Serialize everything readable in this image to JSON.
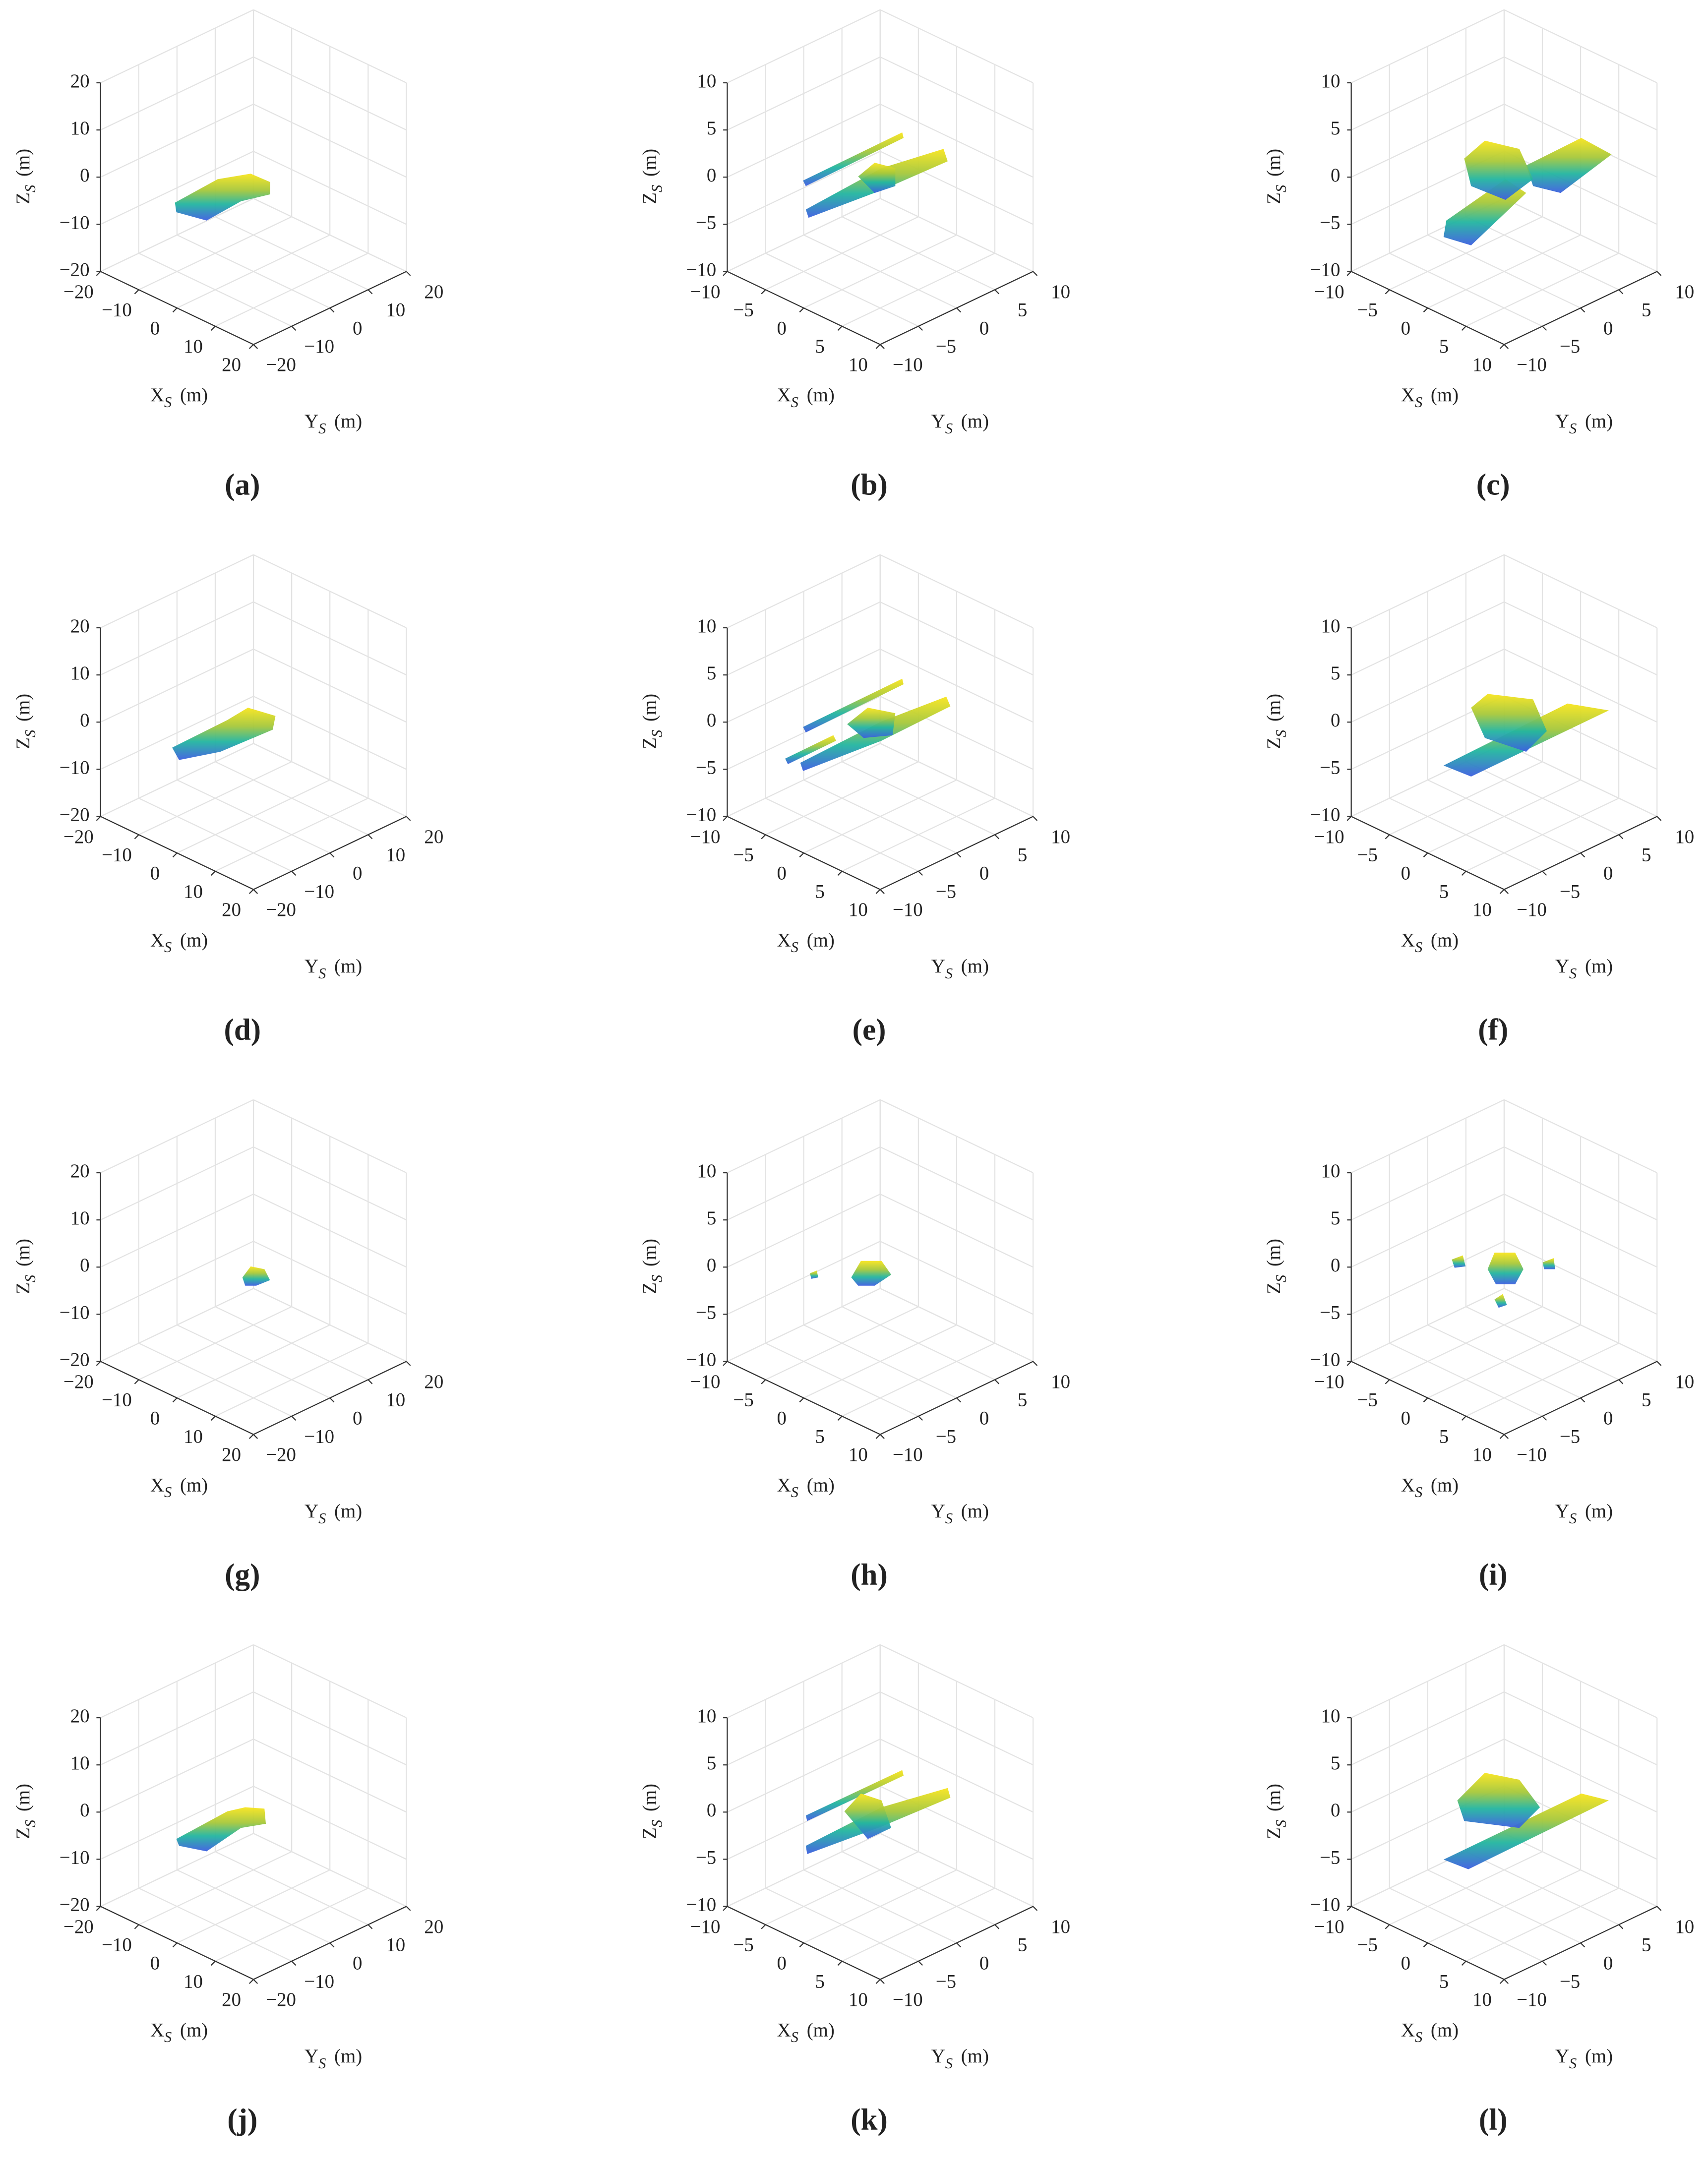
{
  "chart_data": [
    {
      "type": "scatter3d",
      "label": "(a)",
      "xlabel": [
        "X",
        "S",
        "(m)"
      ],
      "ylabel": [
        "Y",
        "S",
        "(m)"
      ],
      "zlabel": [
        "Z",
        "S",
        "(m)"
      ],
      "xlim": [
        -20,
        20
      ],
      "ylim": [
        -20,
        20
      ],
      "zlim": [
        -20,
        20
      ],
      "xticks": [
        {
          "value": -20,
          "label": "−20"
        },
        {
          "value": -10,
          "label": "−10"
        },
        0,
        10,
        20
      ],
      "yticks": [
        {
          "value": -20,
          "label": "−20"
        },
        {
          "value": -10,
          "label": "−10"
        },
        0,
        10,
        20
      ],
      "zticks": [
        {
          "value": -20,
          "label": "−20"
        },
        {
          "value": -10,
          "label": "−10"
        },
        0,
        10,
        20
      ],
      "grid": true
    },
    {
      "type": "scatter3d",
      "label": "(b)",
      "xlabel": [
        "X",
        "S",
        "(m)"
      ],
      "ylabel": [
        "Y",
        "S",
        "(m)"
      ],
      "zlabel": [
        "Z",
        "S",
        "(m)"
      ],
      "xlim": [
        -10,
        10
      ],
      "ylim": [
        -10,
        10
      ],
      "zlim": [
        -10,
        10
      ],
      "xticks": [
        {
          "value": -10,
          "label": "−10"
        },
        {
          "value": -5,
          "label": "−5"
        },
        0,
        5,
        10
      ],
      "yticks": [
        {
          "value": -10,
          "label": "−10"
        },
        {
          "value": -5,
          "label": "−5"
        },
        0,
        5,
        10
      ],
      "zticks": [
        {
          "value": -10,
          "label": "−10"
        },
        {
          "value": -5,
          "label": "−5"
        },
        0,
        5,
        10
      ],
      "grid": true
    },
    {
      "type": "scatter3d",
      "label": "(c)",
      "xlabel": [
        "X",
        "S",
        "(m)"
      ],
      "ylabel": [
        "Y",
        "S",
        "(m)"
      ],
      "zlabel": [
        "Z",
        "S",
        "(m)"
      ],
      "xlim": [
        -10,
        10
      ],
      "ylim": [
        -10,
        10
      ],
      "zlim": [
        -10,
        10
      ],
      "xticks": [
        {
          "value": -10,
          "label": "−10"
        },
        {
          "value": -5,
          "label": "−5"
        },
        0,
        5,
        10
      ],
      "yticks": [
        {
          "value": -10,
          "label": "−10"
        },
        {
          "value": -5,
          "label": "−5"
        },
        0,
        5,
        10
      ],
      "zticks": [
        {
          "value": -10,
          "label": "−10"
        },
        {
          "value": -5,
          "label": "−5"
        },
        0,
        5,
        10
      ],
      "grid": true
    },
    {
      "type": "scatter3d",
      "label": "(d)",
      "xlabel": [
        "X",
        "S",
        "(m)"
      ],
      "ylabel": [
        "Y",
        "S",
        "(m)"
      ],
      "zlabel": [
        "Z",
        "S",
        "(m)"
      ],
      "xlim": [
        -20,
        20
      ],
      "ylim": [
        -20,
        20
      ],
      "zlim": [
        -20,
        20
      ],
      "xticks": [
        {
          "value": -20,
          "label": "−20"
        },
        {
          "value": -10,
          "label": "−10"
        },
        0,
        10,
        20
      ],
      "yticks": [
        {
          "value": -20,
          "label": "−20"
        },
        {
          "value": -10,
          "label": "−10"
        },
        0,
        10,
        20
      ],
      "zticks": [
        {
          "value": -20,
          "label": "−20"
        },
        {
          "value": -10,
          "label": "−10"
        },
        0,
        10,
        20
      ],
      "grid": true
    },
    {
      "type": "scatter3d",
      "label": "(e)",
      "xlabel": [
        "X",
        "S",
        "(m)"
      ],
      "ylabel": [
        "Y",
        "S",
        "(m)"
      ],
      "zlabel": [
        "Z",
        "S",
        "(m)"
      ],
      "xlim": [
        -10,
        10
      ],
      "ylim": [
        -10,
        10
      ],
      "zlim": [
        -10,
        10
      ],
      "xticks": [
        {
          "value": -10,
          "label": "−10"
        },
        {
          "value": -5,
          "label": "−5"
        },
        0,
        5,
        10
      ],
      "yticks": [
        {
          "value": -10,
          "label": "−10"
        },
        {
          "value": -5,
          "label": "−5"
        },
        0,
        5,
        10
      ],
      "zticks": [
        {
          "value": -10,
          "label": "−10"
        },
        {
          "value": -5,
          "label": "−5"
        },
        0,
        5,
        10
      ],
      "grid": true
    },
    {
      "type": "scatter3d",
      "label": "(f)",
      "xlabel": [
        "X",
        "S",
        "(m)"
      ],
      "ylabel": [
        "Y",
        "S",
        "(m)"
      ],
      "zlabel": [
        "Z",
        "S",
        "(m)"
      ],
      "xlim": [
        -10,
        10
      ],
      "ylim": [
        -10,
        10
      ],
      "zlim": [
        -10,
        10
      ],
      "xticks": [
        {
          "value": -10,
          "label": "−10"
        },
        {
          "value": -5,
          "label": "−5"
        },
        0,
        5,
        10
      ],
      "yticks": [
        {
          "value": -10,
          "label": "−10"
        },
        {
          "value": -5,
          "label": "−5"
        },
        0,
        5,
        10
      ],
      "zticks": [
        {
          "value": -10,
          "label": "−10"
        },
        {
          "value": -5,
          "label": "−5"
        },
        0,
        5,
        10
      ],
      "grid": true
    },
    {
      "type": "scatter3d",
      "label": "(g)",
      "xlabel": [
        "X",
        "S",
        "(m)"
      ],
      "ylabel": [
        "Y",
        "S",
        "(m)"
      ],
      "zlabel": [
        "Z",
        "S",
        "(m)"
      ],
      "xlim": [
        -20,
        20
      ],
      "ylim": [
        -20,
        20
      ],
      "zlim": [
        -20,
        20
      ],
      "xticks": [
        {
          "value": -20,
          "label": "−20"
        },
        {
          "value": -10,
          "label": "−10"
        },
        0,
        10,
        20
      ],
      "yticks": [
        {
          "value": -20,
          "label": "−20"
        },
        {
          "value": -10,
          "label": "−10"
        },
        0,
        10,
        20
      ],
      "zticks": [
        {
          "value": -20,
          "label": "−20"
        },
        {
          "value": -10,
          "label": "−10"
        },
        0,
        10,
        20
      ],
      "grid": true
    },
    {
      "type": "scatter3d",
      "label": "(h)",
      "xlabel": [
        "X",
        "S",
        "(m)"
      ],
      "ylabel": [
        "Y",
        "S",
        "(m)"
      ],
      "zlabel": [
        "Z",
        "S",
        "(m)"
      ],
      "xlim": [
        -10,
        10
      ],
      "ylim": [
        -10,
        10
      ],
      "zlim": [
        -10,
        10
      ],
      "xticks": [
        {
          "value": -10,
          "label": "−10"
        },
        {
          "value": -5,
          "label": "−5"
        },
        0,
        5,
        10
      ],
      "yticks": [
        {
          "value": -10,
          "label": "−10"
        },
        {
          "value": -5,
          "label": "−5"
        },
        0,
        5,
        10
      ],
      "zticks": [
        {
          "value": -10,
          "label": "−10"
        },
        {
          "value": -5,
          "label": "−5"
        },
        0,
        5,
        10
      ],
      "grid": true
    },
    {
      "type": "scatter3d",
      "label": "(i)",
      "xlabel": [
        "X",
        "S",
        "(m)"
      ],
      "ylabel": [
        "Y",
        "S",
        "(m)"
      ],
      "zlabel": [
        "Z",
        "S",
        "(m)"
      ],
      "xlim": [
        -10,
        10
      ],
      "ylim": [
        -10,
        10
      ],
      "zlim": [
        -10,
        10
      ],
      "xticks": [
        {
          "value": -10,
          "label": "−10"
        },
        {
          "value": -5,
          "label": "−5"
        },
        0,
        5,
        10
      ],
      "yticks": [
        {
          "value": -10,
          "label": "−10"
        },
        {
          "value": -5,
          "label": "−5"
        },
        0,
        5,
        10
      ],
      "zticks": [
        {
          "value": -10,
          "label": "−10"
        },
        {
          "value": -5,
          "label": "−5"
        },
        0,
        5,
        10
      ],
      "grid": true
    },
    {
      "type": "scatter3d",
      "label": "(j)",
      "xlabel": [
        "X",
        "S",
        "(m)"
      ],
      "ylabel": [
        "Y",
        "S",
        "(m)"
      ],
      "zlabel": [
        "Z",
        "S",
        "(m)"
      ],
      "xlim": [
        -20,
        20
      ],
      "ylim": [
        -20,
        20
      ],
      "zlim": [
        -20,
        20
      ],
      "xticks": [
        {
          "value": -20,
          "label": "−20"
        },
        {
          "value": -10,
          "label": "−10"
        },
        0,
        10,
        20
      ],
      "yticks": [
        {
          "value": -20,
          "label": "−20"
        },
        {
          "value": -10,
          "label": "−10"
        },
        0,
        10,
        20
      ],
      "zticks": [
        {
          "value": -20,
          "label": "−20"
        },
        {
          "value": -10,
          "label": "−10"
        },
        0,
        10,
        20
      ],
      "grid": true
    },
    {
      "type": "scatter3d",
      "label": "(k)",
      "xlabel": [
        "X",
        "S",
        "(m)"
      ],
      "ylabel": [
        "Y",
        "S",
        "(m)"
      ],
      "zlabel": [
        "Z",
        "S",
        "(m)"
      ],
      "xlim": [
        -10,
        10
      ],
      "ylim": [
        -10,
        10
      ],
      "zlim": [
        -10,
        10
      ],
      "xticks": [
        {
          "value": -10,
          "label": "−10"
        },
        {
          "value": -5,
          "label": "−5"
        },
        0,
        5,
        10
      ],
      "yticks": [
        {
          "value": -10,
          "label": "−10"
        },
        {
          "value": -5,
          "label": "−5"
        },
        0,
        5,
        10
      ],
      "zticks": [
        {
          "value": -10,
          "label": "−10"
        },
        {
          "value": -5,
          "label": "−5"
        },
        0,
        5,
        10
      ],
      "grid": true
    },
    {
      "type": "scatter3d",
      "label": "(l)",
      "xlabel": [
        "X",
        "S",
        "(m)"
      ],
      "ylabel": [
        "Y",
        "S",
        "(m)"
      ],
      "zlabel": [
        "Z",
        "S",
        "(m)"
      ],
      "xlim": [
        -10,
        10
      ],
      "ylim": [
        -10,
        10
      ],
      "zlim": [
        -10,
        10
      ],
      "xticks": [
        {
          "value": -10,
          "label": "−10"
        },
        {
          "value": -5,
          "label": "−5"
        },
        0,
        5,
        10
      ],
      "yticks": [
        {
          "value": -10,
          "label": "−10"
        },
        {
          "value": -5,
          "label": "−5"
        },
        0,
        5,
        10
      ],
      "zticks": [
        {
          "value": -10,
          "label": "−10"
        },
        {
          "value": -5,
          "label": "−5"
        },
        0,
        5,
        10
      ],
      "grid": true
    }
  ]
}
